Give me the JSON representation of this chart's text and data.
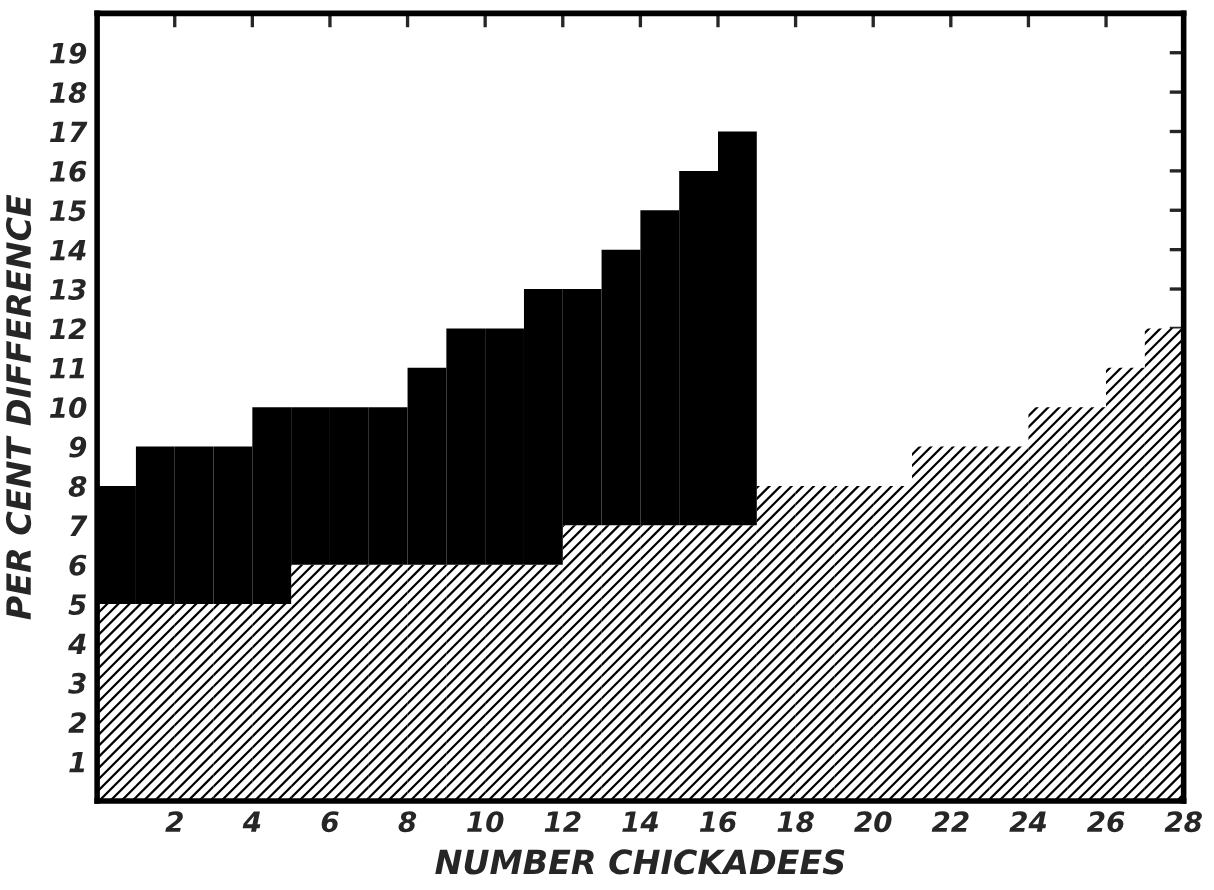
{
  "chart_data": {
    "type": "bar",
    "stacked": true,
    "x": [
      0.5,
      1.5,
      2.5,
      3.5,
      4.5,
      5.5,
      6.5,
      7.5,
      8.5,
      9.5,
      10.5,
      11.5,
      12.5,
      13.5,
      14.5,
      15.5,
      16.5,
      17.5,
      18.5,
      19.5,
      20.5,
      21.5,
      22.5,
      23.5,
      24.5,
      25.5,
      26.5,
      27.5
    ],
    "series": [
      {
        "color": "#000000",
        "values": [
          5,
          5,
          5,
          5,
          5,
          6,
          6,
          6,
          6,
          6,
          6,
          6,
          7,
          7,
          7,
          7,
          7,
          8,
          8,
          8,
          8,
          9,
          9,
          9,
          10,
          10,
          11,
          12
        ]
      },
      {
        "color": "#000000",
        "values": [
          3,
          4,
          4,
          4,
          5,
          4,
          4,
          4,
          5,
          6,
          6,
          7,
          6,
          7,
          8,
          9,
          10,
          null,
          null,
          null,
          null,
          null,
          null,
          null,
          null,
          null,
          null,
          null
        ]
      }
    ],
    "xlabel": "NUMBER CHICKADEES",
    "ylabel": "PER CENT DIFFERENCE",
    "xlim": [
      0,
      28
    ],
    "xticks": [
      2,
      4,
      6,
      8,
      10,
      12,
      14,
      16,
      18,
      20,
      22,
      24,
      26,
      28
    ],
    "ylim": [
      0,
      20
    ],
    "yticks": [
      1,
      2,
      3,
      4,
      5,
      6,
      7,
      8,
      9,
      10,
      11,
      12,
      13,
      14,
      15,
      16,
      17,
      18,
      19
    ],
    "grid": false,
    "legend": false
  }
}
